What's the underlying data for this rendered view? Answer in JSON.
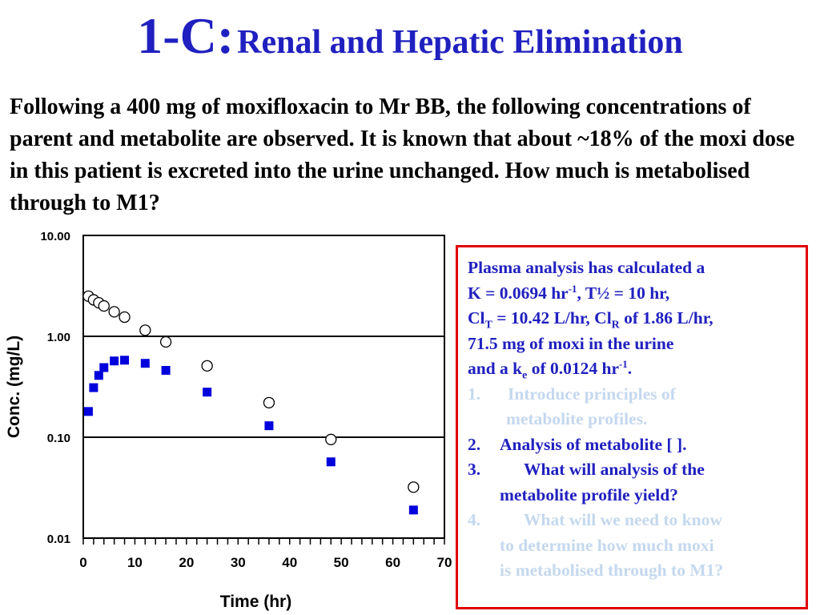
{
  "slide": {
    "title_prefix": "1-C:",
    "title_text": "Renal and Hepatic Elimination",
    "intro": "Following a 400 mg of moxifloxacin to Mr BB, the following concentrations of parent and metabolite are observed.  It is known that about ~18% of the moxi dose in this patient is excreted into the urine unchanged.  How much is metabolised through to M1?"
  },
  "box": {
    "l1": "Plasma analysis has calculated a",
    "l2a": "K = 0.0694 hr",
    "l2sup": "-1",
    "l2b": ", T½ = 10 hr,",
    "l3a": "Cl",
    "l3sub": "T",
    "l3b": " = 10.42 L/hr, Cl",
    "l3sub2": "R",
    "l3c": " of 1.86 L/hr,",
    "l4": "71.5 mg of moxi in the urine",
    "l5a": "and a k",
    "l5sub": "e",
    "l5b": " of 0.0124 hr",
    "l5sup": "-1",
    "l5c": ".",
    "items": [
      {
        "num": "1.",
        "line1": "Introduce principles of",
        "line2": "metabolite profiles."
      },
      {
        "num": "2.",
        "line1": "Analysis of metabolite [ ]."
      },
      {
        "num": "3.",
        "line1": "What will analysis of the",
        "line2": "metabolite profile yield?"
      },
      {
        "num": "4.",
        "line1": "What will we need to know",
        "line2": "to determine how much moxi",
        "line3": "is metabolised through to M1?"
      }
    ],
    "colors": {
      "text": "#2020c0",
      "faded": "#c4d8ee",
      "border": "#e00000"
    }
  },
  "chart_data": {
    "type": "scatter",
    "xlabel": "Time (hr)",
    "ylabel": "Conc. (mg/L)",
    "xlim": [
      0,
      70
    ],
    "ylim": [
      0.01,
      10
    ],
    "yscale": "log",
    "x_ticks": [
      "0",
      "10",
      "20",
      "30",
      "40",
      "50",
      "60",
      "70"
    ],
    "y_ticks": [
      "10.00",
      "1.00",
      "0.10",
      "0.01"
    ],
    "grid": "horizontal at decades",
    "series": [
      {
        "marker": "open-circle",
        "color": "#000000",
        "x": [
          1,
          2,
          3,
          4,
          6,
          8,
          12,
          16,
          24,
          36,
          48,
          64
        ],
        "y": [
          2.5,
          2.3,
          2.15,
          2.0,
          1.75,
          1.55,
          1.15,
          0.88,
          0.51,
          0.22,
          0.095,
          0.032
        ]
      },
      {
        "marker": "filled-square",
        "color": "#0000dd",
        "x": [
          1,
          2,
          3,
          4,
          6,
          8,
          12,
          16,
          24,
          36,
          48,
          64
        ],
        "y": [
          0.18,
          0.31,
          0.41,
          0.49,
          0.57,
          0.58,
          0.54,
          0.46,
          0.28,
          0.13,
          0.057,
          0.019
        ]
      }
    ]
  }
}
